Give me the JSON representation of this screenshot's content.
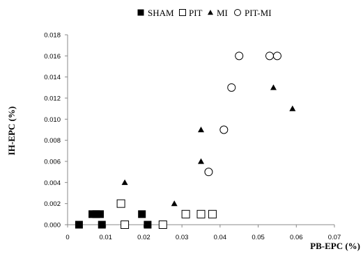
{
  "chart_data": {
    "type": "scatter",
    "xlabel": "PB-EPC (%)",
    "ylabel": "IH-EPC (%)",
    "xlim": [
      0,
      0.07
    ],
    "ylim": [
      0,
      0.018
    ],
    "x_ticks": [
      "0",
      "0.01",
      "0.02",
      "0.03",
      "0.04",
      "0.05",
      "0.06",
      "0.07"
    ],
    "y_ticks": [
      "0.000",
      "0.002",
      "0.004",
      "0.006",
      "0.008",
      "0.010",
      "0.012",
      "0.014",
      "0.016",
      "0.018"
    ],
    "grid": false,
    "legend_position": "top",
    "series": [
      {
        "name": "SHAM",
        "marker": "filled-square",
        "color": "#000000",
        "points": [
          {
            "x": 0.003,
            "y": 0.0
          },
          {
            "x": 0.0065,
            "y": 0.001
          },
          {
            "x": 0.0075,
            "y": 0.001
          },
          {
            "x": 0.0085,
            "y": 0.001
          },
          {
            "x": 0.009,
            "y": 0.0
          },
          {
            "x": 0.0195,
            "y": 0.001
          },
          {
            "x": 0.021,
            "y": 0.0
          }
        ]
      },
      {
        "name": "PIT",
        "marker": "open-square",
        "color": "#000000",
        "points": [
          {
            "x": 0.014,
            "y": 0.002
          },
          {
            "x": 0.015,
            "y": 0.0
          },
          {
            "x": 0.025,
            "y": 0.0
          },
          {
            "x": 0.031,
            "y": 0.001
          },
          {
            "x": 0.035,
            "y": 0.001
          },
          {
            "x": 0.038,
            "y": 0.001
          }
        ]
      },
      {
        "name": "MI",
        "marker": "filled-triangle",
        "color": "#000000",
        "points": [
          {
            "x": 0.015,
            "y": 0.004
          },
          {
            "x": 0.028,
            "y": 0.002
          },
          {
            "x": 0.035,
            "y": 0.006
          },
          {
            "x": 0.035,
            "y": 0.009
          },
          {
            "x": 0.054,
            "y": 0.013
          },
          {
            "x": 0.059,
            "y": 0.011
          }
        ]
      },
      {
        "name": "PIT-MI",
        "marker": "open-circle",
        "color": "#000000",
        "points": [
          {
            "x": 0.037,
            "y": 0.005
          },
          {
            "x": 0.041,
            "y": 0.009
          },
          {
            "x": 0.043,
            "y": 0.013
          },
          {
            "x": 0.045,
            "y": 0.016
          },
          {
            "x": 0.053,
            "y": 0.016
          },
          {
            "x": 0.055,
            "y": 0.016
          }
        ]
      }
    ]
  }
}
